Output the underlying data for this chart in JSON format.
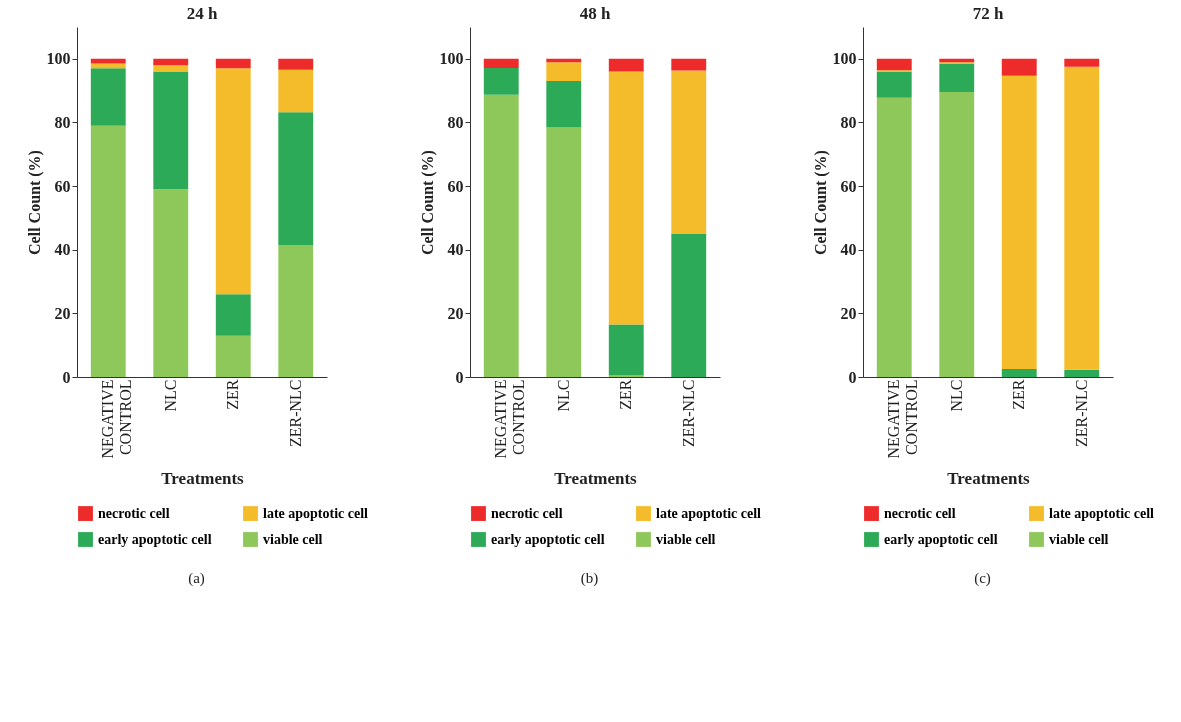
{
  "chart_data": [
    {
      "type": "bar",
      "stacked": true,
      "title": "24 h",
      "xlabel": "Treatments",
      "ylabel": "Cell Count (%)",
      "categories": [
        "NEGATIVE CONTROL",
        "NLC",
        "ZER",
        "ZER-NLC"
      ],
      "ylim": [
        0,
        110
      ],
      "yticks": [
        0,
        20,
        40,
        60,
        80,
        100
      ],
      "grid": false,
      "legend": "bottom",
      "annotations": [
        "(a)"
      ],
      "series": [
        {
          "name": "viable cell",
          "color": "#8fc85a",
          "values": [
            79,
            59,
            13,
            41.5
          ]
        },
        {
          "name": "early apoptotic cell",
          "color": "#2daa57",
          "values": [
            18,
            37,
            13,
            41.7
          ]
        },
        {
          "name": "late apoptotic cell",
          "color": "#f4bc2b",
          "values": [
            1.5,
            2,
            71,
            13.4
          ]
        },
        {
          "name": "necrotic cell",
          "color": "#ee2b2b",
          "values": [
            1.5,
            2,
            3,
            3.4
          ]
        }
      ]
    },
    {
      "type": "bar",
      "stacked": true,
      "title": "48 h",
      "xlabel": "Treatments",
      "ylabel": "Cell Count (%)",
      "categories": [
        "NEGATIVE CONTROL",
        "NLC",
        "ZER",
        "ZER-NLC"
      ],
      "ylim": [
        0,
        110
      ],
      "yticks": [
        0,
        20,
        40,
        60,
        80,
        100
      ],
      "grid": false,
      "legend": "bottom",
      "annotations": [
        "(b)"
      ],
      "series": [
        {
          "name": "viable cell",
          "color": "#8fc85a",
          "values": [
            88.7,
            78.4,
            0.5,
            0
          ]
        },
        {
          "name": "early apoptotic cell",
          "color": "#2daa57",
          "values": [
            8.4,
            14.6,
            16,
            45.1
          ]
        },
        {
          "name": "late apoptotic cell",
          "color": "#f4bc2b",
          "values": [
            0,
            5.9,
            79.5,
            51.2
          ]
        },
        {
          "name": "necrotic cell",
          "color": "#ee2b2b",
          "values": [
            2.9,
            1.1,
            4,
            3.7
          ]
        }
      ]
    },
    {
      "type": "bar",
      "stacked": true,
      "title": "72 h",
      "xlabel": "Treatments",
      "ylabel": "Cell Count (%)",
      "categories": [
        "NEGATIVE CONTROL",
        "NLC",
        "ZER",
        "ZER-NLC"
      ],
      "ylim": [
        0,
        110
      ],
      "yticks": [
        0,
        20,
        40,
        60,
        80,
        100
      ],
      "grid": false,
      "legend": "bottom",
      "annotations": [
        "(c)"
      ],
      "series": [
        {
          "name": "viable cell",
          "color": "#8fc85a",
          "values": [
            87.8,
            89.6,
            0,
            0
          ]
        },
        {
          "name": "early apoptotic cell",
          "color": "#2daa57",
          "values": [
            8.2,
            8.9,
            2.5,
            2.3
          ]
        },
        {
          "name": "late apoptotic cell",
          "color": "#f4bc2b",
          "values": [
            0.4,
            0.4,
            92.2,
            95.2
          ]
        },
        {
          "name": "necrotic cell",
          "color": "#ee2b2b",
          "values": [
            3.6,
            1.1,
            5.3,
            2.5
          ]
        }
      ]
    }
  ]
}
